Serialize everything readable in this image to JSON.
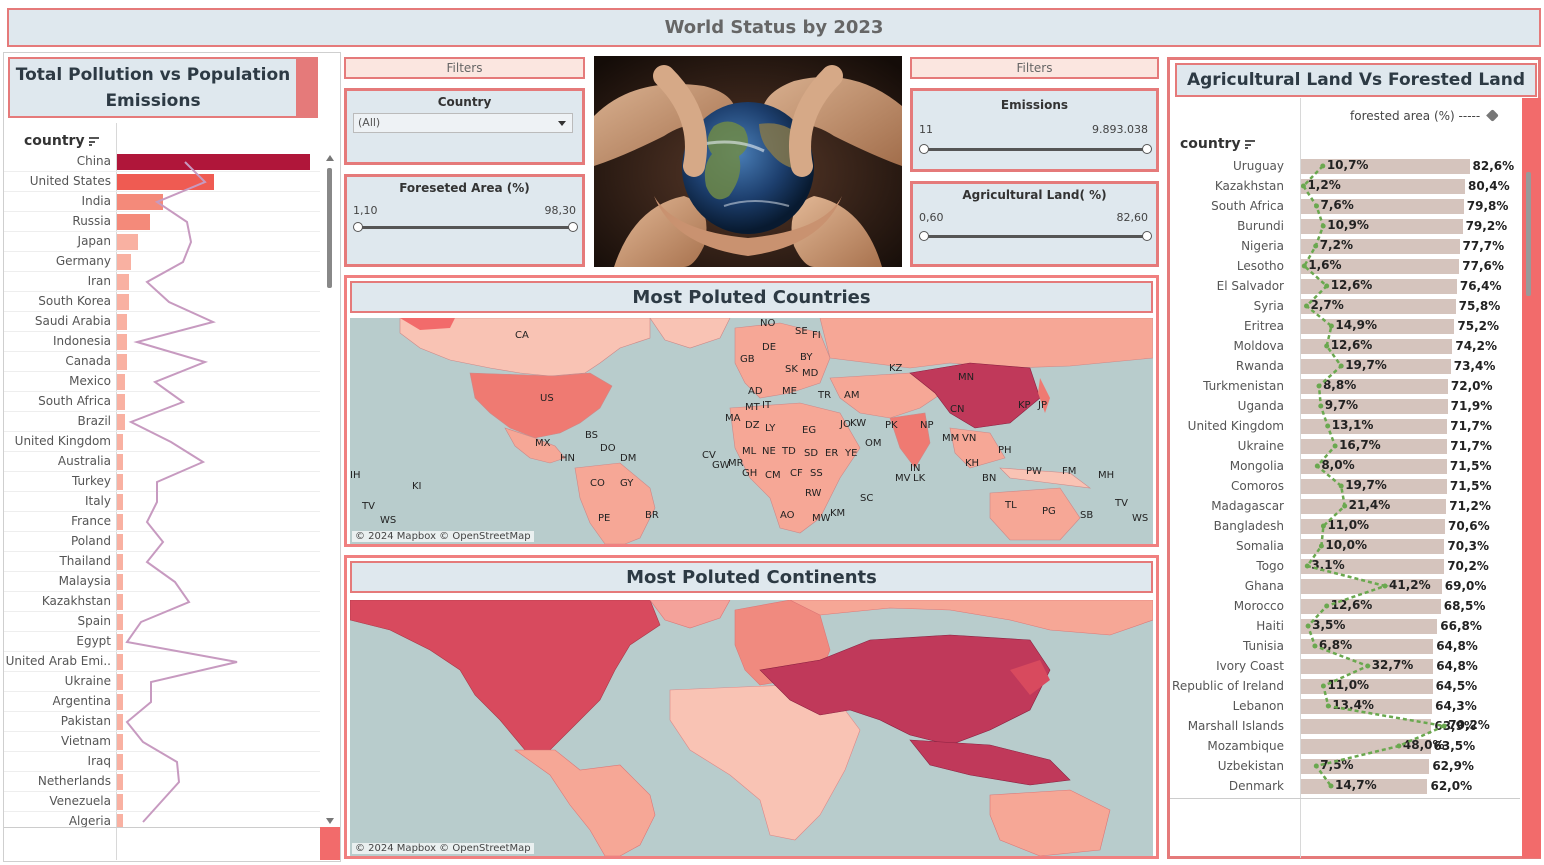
{
  "title": "World Status by 2023",
  "left_panel": {
    "title": "Total Pollution vs Population Emissions",
    "axis_title": "country",
    "rows": [
      {
        "country": "China",
        "bar": 1.0,
        "line": 0.34
      },
      {
        "country": "United States",
        "bar": 0.5,
        "line": 0.44
      },
      {
        "country": "India",
        "bar": 0.24,
        "line": 0.2
      },
      {
        "country": "Russia",
        "bar": 0.17,
        "line": 0.35
      },
      {
        "country": "Japan",
        "bar": 0.11,
        "line": 0.37
      },
      {
        "country": "Germany",
        "bar": 0.07,
        "line": 0.33
      },
      {
        "country": "Iran",
        "bar": 0.06,
        "line": 0.15
      },
      {
        "country": "South Korea",
        "bar": 0.06,
        "line": 0.26
      },
      {
        "country": "Saudi Arabia",
        "bar": 0.05,
        "line": 0.48
      },
      {
        "country": "Indonesia",
        "bar": 0.05,
        "line": 0.1
      },
      {
        "country": "Canada",
        "bar": 0.05,
        "line": 0.44
      },
      {
        "country": "Mexico",
        "bar": 0.04,
        "line": 0.19
      },
      {
        "country": "South Africa",
        "bar": 0.04,
        "line": 0.33
      },
      {
        "country": "Brazil",
        "bar": 0.04,
        "line": 0.07
      },
      {
        "country": "United Kingdom",
        "bar": 0.03,
        "line": 0.27
      },
      {
        "country": "Australia",
        "bar": 0.03,
        "line": 0.43
      },
      {
        "country": "Turkey",
        "bar": 0.03,
        "line": 0.2
      },
      {
        "country": "Italy",
        "bar": 0.03,
        "line": 0.2
      },
      {
        "country": "France",
        "bar": 0.02,
        "line": 0.15
      },
      {
        "country": "Poland",
        "bar": 0.02,
        "line": 0.23
      },
      {
        "country": "Thailand",
        "bar": 0.02,
        "line": 0.15
      },
      {
        "country": "Malaysia",
        "bar": 0.02,
        "line": 0.29
      },
      {
        "country": "Kazakhstan",
        "bar": 0.02,
        "line": 0.36
      },
      {
        "country": "Spain",
        "bar": 0.02,
        "line": 0.12
      },
      {
        "country": "Egypt",
        "bar": 0.02,
        "line": 0.05
      },
      {
        "country": "United Arab Emi..",
        "bar": 0.02,
        "line": 0.6
      },
      {
        "country": "Ukraine",
        "bar": 0.02,
        "line": 0.17
      },
      {
        "country": "Argentina",
        "bar": 0.01,
        "line": 0.17
      },
      {
        "country": "Pakistan",
        "bar": 0.01,
        "line": 0.05
      },
      {
        "country": "Vietnam",
        "bar": 0.01,
        "line": 0.13
      },
      {
        "country": "Iraq",
        "bar": 0.01,
        "line": 0.3
      },
      {
        "country": "Netherlands",
        "bar": 0.01,
        "line": 0.31
      },
      {
        "country": "Venezuela",
        "bar": 0.01,
        "line": 0.22
      },
      {
        "country": "Algeria",
        "bar": 0.01,
        "line": 0.13
      }
    ]
  },
  "filters_left": {
    "tag": "Filters",
    "country": {
      "title": "Country",
      "value": "(All)"
    },
    "forested": {
      "title": "Foreseted Area (%)",
      "min": "1,10",
      "max": "98,30",
      "low": 0.0,
      "high": 1.0
    }
  },
  "filters_right": {
    "tag": "Filters",
    "emissions": {
      "title": "Emissions",
      "min": "11",
      "max": "9.893.038",
      "low": 0.0,
      "high": 1.0
    },
    "agri": {
      "title": "Agricultural Land( %)",
      "min": "0,60",
      "max": "82,60",
      "low": 0.0,
      "high": 1.0
    }
  },
  "map_countries": {
    "title": "Most Poluted Countries",
    "credit": "© 2024 Mapbox © OpenStreetMap",
    "codes": [
      "CA",
      "US",
      "MX",
      "BS",
      "DO",
      "HN",
      "DM",
      "CO",
      "GY",
      "PE",
      "BR",
      "IH",
      "KI",
      "TV",
      "WS",
      "NO",
      "SE",
      "FI",
      "GB",
      "DE",
      "BY",
      "SK",
      "MD",
      "AD",
      "ME",
      "IT",
      "MT",
      "TR",
      "AM",
      "KZ",
      "MN",
      "CN",
      "KP",
      "JP",
      "MA",
      "DZ",
      "LY",
      "EG",
      "JO",
      "KW",
      "PK",
      "NP",
      "MM",
      "VN",
      "PH",
      "IN",
      "LK",
      "KH",
      "BN",
      "CV",
      "MR",
      "ML",
      "NE",
      "TD",
      "SD",
      "ER",
      "YE",
      "OM",
      "GW",
      "GH",
      "CM",
      "CF",
      "SS",
      "RW",
      "AO",
      "MW",
      "KM",
      "SC",
      "MV",
      "PW",
      "FM",
      "MH",
      "TL",
      "PG",
      "SB",
      "TV",
      "WS"
    ],
    "colors": {
      "dark": "#c0395a",
      "mid": "#ef7a72",
      "light": "#f6a796",
      "pale": "#f9c3b4"
    }
  },
  "map_continents": {
    "title": "Most Poluted Continents",
    "credit": "© 2024 Mapbox © OpenStreetMap"
  },
  "right_panel": {
    "title": "Agricultural Land Vs Forested Land",
    "axis_title": "country",
    "legend": "forested area (%) -----",
    "rows": [
      {
        "country": "Uruguay",
        "agri": "82,6%",
        "agri_v": 82.6,
        "forest": "10,7%",
        "forest_v": 10.7
      },
      {
        "country": "Kazakhstan",
        "agri": "80,4%",
        "agri_v": 80.4,
        "forest": "1,2%",
        "forest_v": 1.2
      },
      {
        "country": "South Africa",
        "agri": "79,8%",
        "agri_v": 79.8,
        "forest": "7,6%",
        "forest_v": 7.6
      },
      {
        "country": "Burundi",
        "agri": "79,2%",
        "agri_v": 79.2,
        "forest": "10,9%",
        "forest_v": 10.9
      },
      {
        "country": "Nigeria",
        "agri": "77,7%",
        "agri_v": 77.7,
        "forest": "7,2%",
        "forest_v": 7.2
      },
      {
        "country": "Lesotho",
        "agri": "77,6%",
        "agri_v": 77.6,
        "forest": "1,6%",
        "forest_v": 1.6
      },
      {
        "country": "El Salvador",
        "agri": "76,4%",
        "agri_v": 76.4,
        "forest": "12,6%",
        "forest_v": 12.6
      },
      {
        "country": "Syria",
        "agri": "75,8%",
        "agri_v": 75.8,
        "forest": "2,7%",
        "forest_v": 2.7
      },
      {
        "country": "Eritrea",
        "agri": "75,2%",
        "agri_v": 75.2,
        "forest": "14,9%",
        "forest_v": 14.9
      },
      {
        "country": "Moldova",
        "agri": "74,2%",
        "agri_v": 74.2,
        "forest": "12,6%",
        "forest_v": 12.6
      },
      {
        "country": "Rwanda",
        "agri": "73,4%",
        "agri_v": 73.4,
        "forest": "19,7%",
        "forest_v": 19.7
      },
      {
        "country": "Turkmenistan",
        "agri": "72,0%",
        "agri_v": 72.0,
        "forest": "8,8%",
        "forest_v": 8.8
      },
      {
        "country": "Uganda",
        "agri": "71,9%",
        "agri_v": 71.9,
        "forest": "9,7%",
        "forest_v": 9.7
      },
      {
        "country": "United Kingdom",
        "agri": "71,7%",
        "agri_v": 71.7,
        "forest": "13,1%",
        "forest_v": 13.1
      },
      {
        "country": "Ukraine",
        "agri": "71,7%",
        "agri_v": 71.7,
        "forest": "16,7%",
        "forest_v": 16.7
      },
      {
        "country": "Mongolia",
        "agri": "71,5%",
        "agri_v": 71.5,
        "forest": "8,0%",
        "forest_v": 8.0
      },
      {
        "country": "Comoros",
        "agri": "71,5%",
        "agri_v": 71.5,
        "forest": "19,7%",
        "forest_v": 19.7
      },
      {
        "country": "Madagascar",
        "agri": "71,2%",
        "agri_v": 71.2,
        "forest": "21,4%",
        "forest_v": 21.4
      },
      {
        "country": "Bangladesh",
        "agri": "70,6%",
        "agri_v": 70.6,
        "forest": "11,0%",
        "forest_v": 11.0
      },
      {
        "country": "Somalia",
        "agri": "70,3%",
        "agri_v": 70.3,
        "forest": "10,0%",
        "forest_v": 10.0
      },
      {
        "country": "Togo",
        "agri": "70,2%",
        "agri_v": 70.2,
        "forest": "3,1%",
        "forest_v": 3.1
      },
      {
        "country": "Ghana",
        "agri": "69,0%",
        "agri_v": 69.0,
        "forest": "41,2%",
        "forest_v": 41.2
      },
      {
        "country": "Morocco",
        "agri": "68,5%",
        "agri_v": 68.5,
        "forest": "12,6%",
        "forest_v": 12.6
      },
      {
        "country": "Haiti",
        "agri": "66,8%",
        "agri_v": 66.8,
        "forest": "3,5%",
        "forest_v": 3.5
      },
      {
        "country": "Tunisia",
        "agri": "64,8%",
        "agri_v": 64.8,
        "forest": "6,8%",
        "forest_v": 6.8
      },
      {
        "country": "Ivory Coast",
        "agri": "64,8%",
        "agri_v": 64.8,
        "forest": "32,7%",
        "forest_v": 32.7
      },
      {
        "country": "Republic of Ireland",
        "agri": "64,5%",
        "agri_v": 64.5,
        "forest": "11,0%",
        "forest_v": 11.0
      },
      {
        "country": "Lebanon",
        "agri": "64,3%",
        "agri_v": 64.3,
        "forest": "13,4%",
        "forest_v": 13.4
      },
      {
        "country": "Marshall Islands",
        "agri": "63,9%",
        "agri_v": 63.9,
        "forest": "70,2%",
        "forest_v": 70.2
      },
      {
        "country": "Mozambique",
        "agri": "63,5%",
        "agri_v": 63.5,
        "forest": "48,0%",
        "forest_v": 48.0
      },
      {
        "country": "Uzbekistan",
        "agri": "62,9%",
        "agri_v": 62.9,
        "forest": "7,5%",
        "forest_v": 7.5
      },
      {
        "country": "Denmark",
        "agri": "62,0%",
        "agri_v": 62.0,
        "forest": "14,7%",
        "forest_v": 14.7
      }
    ]
  }
}
